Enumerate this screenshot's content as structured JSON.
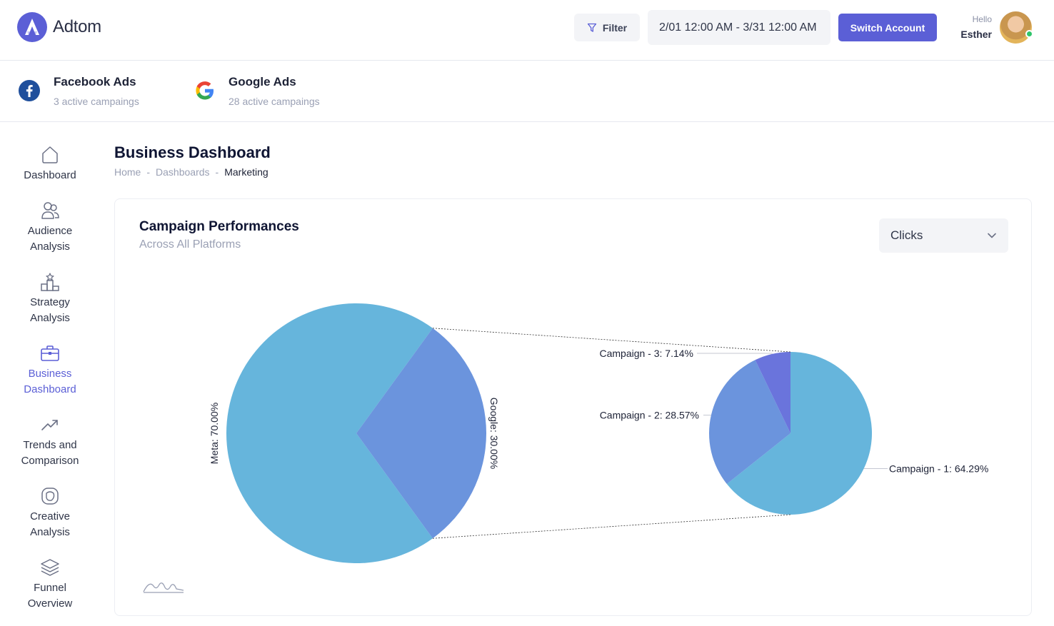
{
  "app": {
    "name": "Adtom"
  },
  "header": {
    "filter_label": "Filter",
    "date_range": "2/01 12:00 AM - 3/31 12:00 AM",
    "switch_account_label": "Switch Account",
    "greeting": "Hello",
    "user_name": "Esther"
  },
  "platforms": [
    {
      "name": "Facebook Ads",
      "count": "3 active campaings",
      "icon": "facebook-icon"
    },
    {
      "name": "Google Ads",
      "count": "28 active campaings",
      "icon": "google-icon"
    }
  ],
  "sidebar": {
    "items": [
      {
        "label": "Dashboard",
        "icon": "home-icon"
      },
      {
        "label": "Audience\nAnalysis",
        "icon": "users-icon"
      },
      {
        "label": "Strategy\nAnalysis",
        "icon": "podium-icon"
      },
      {
        "label": "Business\nDashboard",
        "icon": "briefcase-icon",
        "active": true
      },
      {
        "label": "Trends and\nComparison",
        "icon": "trend-up-icon"
      },
      {
        "label": "Creative\nAnalysis",
        "icon": "creative-icon"
      },
      {
        "label": "Funnel\nOverview",
        "icon": "layers-icon"
      }
    ]
  },
  "page": {
    "title": "Business Dashboard",
    "breadcrumb": [
      "Home",
      "Dashboards",
      "Marketing"
    ]
  },
  "card": {
    "title": "Campaign Performances",
    "subtitle": "Across All Platforms",
    "metric_selected": "Clicks"
  },
  "chart_data": {
    "type": "pie",
    "subtype": "pie-of-pie",
    "colors": {
      "primary": "#66b5dc",
      "secondary": "#6b94dd",
      "tertiary": "#6a74dc"
    },
    "main": {
      "slices": [
        {
          "label": "Meta",
          "value": 70.0,
          "display": "Meta: 70.00%"
        },
        {
          "label": "Google",
          "value": 30.0,
          "display": "Google: 30.00%"
        }
      ]
    },
    "breakdown": {
      "of": "Google",
      "slices": [
        {
          "label": "Campaign - 1",
          "value": 64.29,
          "display": "Campaign - 1: 64.29%"
        },
        {
          "label": "Campaign - 2",
          "value": 28.57,
          "display": "Campaign - 2: 28.57%"
        },
        {
          "label": "Campaign - 3",
          "value": 7.14,
          "display": "Campaign - 3: 7.14%"
        }
      ]
    }
  }
}
